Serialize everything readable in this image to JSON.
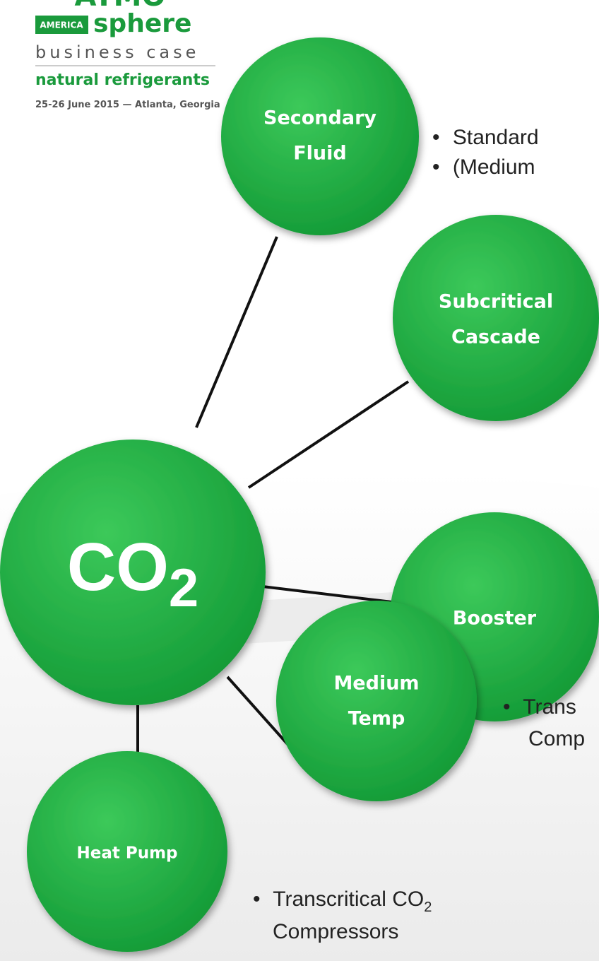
{
  "logo": {
    "brand": "ATMO",
    "region": "AMERICA",
    "brand_suffix": "sphere",
    "tagline": "business case",
    "topic": "natural refrigerants",
    "event": "25-26 June 2015 — Atlanta, Georgia"
  },
  "center": {
    "label": "CO",
    "subscript": "2"
  },
  "nodes": [
    {
      "lines": [
        "Secondary",
        "Fluid"
      ]
    },
    {
      "lines": [
        "Subcritical",
        "Cascade"
      ]
    },
    {
      "lines": [
        "Booster"
      ]
    },
    {
      "lines": [
        "Medium",
        "Temp"
      ]
    },
    {
      "lines": [
        "Heat Pump"
      ]
    }
  ],
  "bullets": [
    {
      "text": "Standard"
    },
    {
      "text": "(Medium"
    },
    {
      "text": "Trans",
      "continuation": "Comp"
    },
    {
      "text": "Transcritical CO",
      "subscript": "2",
      "continuation": "Compressors"
    }
  ]
}
